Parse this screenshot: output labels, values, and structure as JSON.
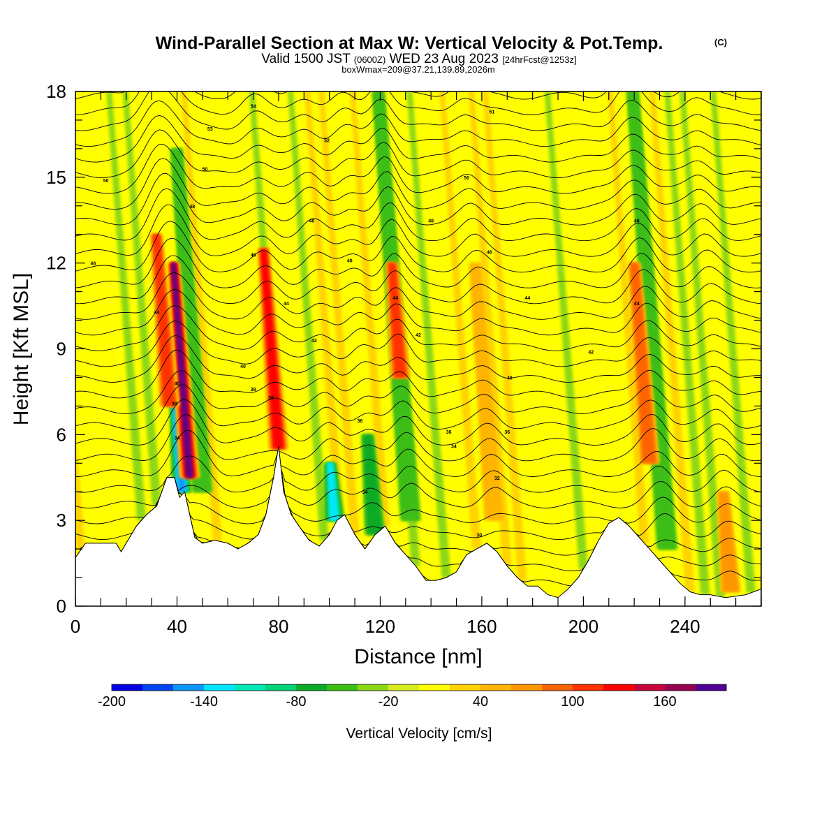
{
  "header": {
    "title": "Wind-Parallel Section at Max W: Vertical Velocity & Pot.Temp.",
    "copyright": "(C)",
    "valid_prefix": "Valid 1500 JST",
    "valid_utc": "(0600Z)",
    "valid_date": "WED 23 Aug 2023",
    "forecast": "[24hrFcst@1253z]",
    "boxinfo": "boxWmax=209@37.21,139.89,2026m"
  },
  "chart_data": {
    "type": "heatmap",
    "xlabel": "Distance [nm]",
    "ylabel": "Height [Kft MSL]",
    "xlim": [
      0,
      270
    ],
    "ylim": [
      0,
      18
    ],
    "xticks": [
      0,
      40,
      80,
      120,
      160,
      200,
      240
    ],
    "yticks": [
      0,
      3,
      6,
      9,
      12,
      15,
      18
    ],
    "colorbar": {
      "title": "Vertical Velocity [cm/s]",
      "range": [
        -200,
        200
      ],
      "step": 20,
      "tick_values": [
        -200,
        -140,
        -80,
        -20,
        40,
        100,
        160
      ],
      "colors": [
        "#0000e6",
        "#0045f0",
        "#0a96ff",
        "#00e6ff",
        "#00e6b4",
        "#00d278",
        "#0aaa28",
        "#3cbe14",
        "#8cd714",
        "#d7ec1e",
        "#ffff00",
        "#ffd200",
        "#ffb400",
        "#ff9600",
        "#ff6400",
        "#ff3200",
        "#ff0000",
        "#c8003c",
        "#960050",
        "#500096"
      ]
    },
    "terrain_nm_kft": [
      [
        0,
        1.7
      ],
      [
        4,
        2.2
      ],
      [
        10,
        2.2
      ],
      [
        16,
        2.2
      ],
      [
        18,
        1.9
      ],
      [
        20,
        2.2
      ],
      [
        24,
        2.8
      ],
      [
        28,
        3.2
      ],
      [
        32,
        3.5
      ],
      [
        36,
        4.5
      ],
      [
        39,
        4.5
      ],
      [
        41,
        3.8
      ],
      [
        43,
        4
      ],
      [
        45,
        3.2
      ],
      [
        47,
        2.4
      ],
      [
        50,
        2.2
      ],
      [
        55,
        2.3
      ],
      [
        60,
        2.2
      ],
      [
        64,
        2
      ],
      [
        68,
        2.2
      ],
      [
        72,
        2.5
      ],
      [
        75,
        3.2
      ],
      [
        78,
        4.5
      ],
      [
        80,
        5.6
      ],
      [
        82,
        4
      ],
      [
        85,
        3.2
      ],
      [
        88,
        2.8
      ],
      [
        92,
        2.3
      ],
      [
        96,
        2.1
      ],
      [
        100,
        2.5
      ],
      [
        103,
        3
      ],
      [
        106,
        3.2
      ],
      [
        110,
        2.5
      ],
      [
        114,
        2
      ],
      [
        118,
        2.5
      ],
      [
        122,
        2.8
      ],
      [
        126,
        2.2
      ],
      [
        130,
        1.8
      ],
      [
        134,
        1.4
      ],
      [
        138,
        0.9
      ],
      [
        142,
        0.9
      ],
      [
        146,
        1
      ],
      [
        150,
        1.2
      ],
      [
        154,
        1.8
      ],
      [
        158,
        2
      ],
      [
        162,
        2.2
      ],
      [
        166,
        1.9
      ],
      [
        170,
        1.4
      ],
      [
        174,
        1
      ],
      [
        178,
        0.7
      ],
      [
        182,
        0.7
      ],
      [
        186,
        0.4
      ],
      [
        190,
        0.3
      ],
      [
        194,
        0.6
      ],
      [
        198,
        1
      ],
      [
        202,
        1.6
      ],
      [
        206,
        2.3
      ],
      [
        210,
        2.9
      ],
      [
        214,
        3.1
      ],
      [
        218,
        2.8
      ],
      [
        222,
        2.4
      ],
      [
        226,
        2
      ],
      [
        230,
        1.6
      ],
      [
        234,
        1.2
      ],
      [
        238,
        0.8
      ],
      [
        242,
        0.5
      ],
      [
        246,
        0.4
      ],
      [
        250,
        0.4
      ],
      [
        256,
        0.3
      ],
      [
        264,
        0.4
      ],
      [
        270,
        0.6
      ]
    ],
    "updraft_columns": [
      {
        "x_nm": 45,
        "base_kft": 4.5,
        "top_kft": 12,
        "w_max_cms": 190
      },
      {
        "x_nm": 37,
        "base_kft": 7,
        "top_kft": 13,
        "w_max_cms": 110
      },
      {
        "x_nm": 80,
        "base_kft": 5.5,
        "top_kft": 12.5,
        "w_max_cms": 120
      },
      {
        "x_nm": 128,
        "base_kft": 8,
        "top_kft": 12,
        "w_max_cms": 110
      },
      {
        "x_nm": 165,
        "base_kft": 3,
        "top_kft": 12,
        "w_max_cms": 50
      },
      {
        "x_nm": 226,
        "base_kft": 5,
        "top_kft": 12,
        "w_max_cms": 90
      },
      {
        "x_nm": 258,
        "base_kft": 0.5,
        "top_kft": 4,
        "w_max_cms": 60
      }
    ],
    "downdraft_columns": [
      {
        "x_nm": 42,
        "base_kft": 4,
        "top_kft": 7,
        "w_min_cms": -150
      },
      {
        "x_nm": 50,
        "base_kft": 4,
        "top_kft": 16,
        "w_min_cms": -60
      },
      {
        "x_nm": 102,
        "base_kft": 3,
        "top_kft": 5,
        "w_min_cms": -140
      },
      {
        "x_nm": 118,
        "base_kft": 2.5,
        "top_kft": 6,
        "w_min_cms": -70
      },
      {
        "x_nm": 132,
        "base_kft": 3,
        "top_kft": 18,
        "w_min_cms": -60
      },
      {
        "x_nm": 233,
        "base_kft": 2,
        "top_kft": 18,
        "w_min_cms": -60
      }
    ],
    "theta_contour_labels": [
      {
        "text": "54",
        "x_nm": 70,
        "y_kft": 17.5
      },
      {
        "text": "53",
        "x_nm": 53,
        "y_kft": 16.7
      },
      {
        "text": "52",
        "x_nm": 99,
        "y_kft": 16.3
      },
      {
        "text": "51",
        "x_nm": 164,
        "y_kft": 17.3
      },
      {
        "text": "50",
        "x_nm": 12,
        "y_kft": 14.9
      },
      {
        "text": "50",
        "x_nm": 51,
        "y_kft": 15.3
      },
      {
        "text": "50",
        "x_nm": 154,
        "y_kft": 15
      },
      {
        "text": "48",
        "x_nm": 46,
        "y_kft": 14
      },
      {
        "text": "48",
        "x_nm": 93,
        "y_kft": 13.5
      },
      {
        "text": "48",
        "x_nm": 140,
        "y_kft": 13.5
      },
      {
        "text": "48",
        "x_nm": 221,
        "y_kft": 13.5
      },
      {
        "text": "46",
        "x_nm": 7,
        "y_kft": 12
      },
      {
        "text": "46",
        "x_nm": 70,
        "y_kft": 12.3
      },
      {
        "text": "46",
        "x_nm": 108,
        "y_kft": 12.1
      },
      {
        "text": "46",
        "x_nm": 163,
        "y_kft": 12.4
      },
      {
        "text": "44",
        "x_nm": 32,
        "y_kft": 10.3
      },
      {
        "text": "44",
        "x_nm": 83,
        "y_kft": 10.6
      },
      {
        "text": "44",
        "x_nm": 126,
        "y_kft": 10.8
      },
      {
        "text": "44",
        "x_nm": 178,
        "y_kft": 10.8
      },
      {
        "text": "44",
        "x_nm": 221,
        "y_kft": 10.6
      },
      {
        "text": "42",
        "x_nm": 94,
        "y_kft": 9.3
      },
      {
        "text": "42",
        "x_nm": 135,
        "y_kft": 9.5
      },
      {
        "text": "42",
        "x_nm": 203,
        "y_kft": 8.9
      },
      {
        "text": "40",
        "x_nm": 40,
        "y_kft": 7.8
      },
      {
        "text": "40",
        "x_nm": 66,
        "y_kft": 8.4
      },
      {
        "text": "40",
        "x_nm": 171,
        "y_kft": 8
      },
      {
        "text": "38",
        "x_nm": 39,
        "y_kft": 7.1
      },
      {
        "text": "38",
        "x_nm": 70,
        "y_kft": 7.6
      },
      {
        "text": "36",
        "x_nm": 77,
        "y_kft": 7.3
      },
      {
        "text": "36",
        "x_nm": 112,
        "y_kft": 6.5
      },
      {
        "text": "36",
        "x_nm": 147,
        "y_kft": 6.1
      },
      {
        "text": "36",
        "x_nm": 170,
        "y_kft": 6.1
      },
      {
        "text": "34",
        "x_nm": 40,
        "y_kft": 5.9
      },
      {
        "text": "34",
        "x_nm": 149,
        "y_kft": 5.6
      },
      {
        "text": "34",
        "x_nm": 114,
        "y_kft": 4
      },
      {
        "text": "32",
        "x_nm": 166,
        "y_kft": 4.5
      },
      {
        "text": "30",
        "x_nm": 159,
        "y_kft": 2.5
      }
    ]
  }
}
